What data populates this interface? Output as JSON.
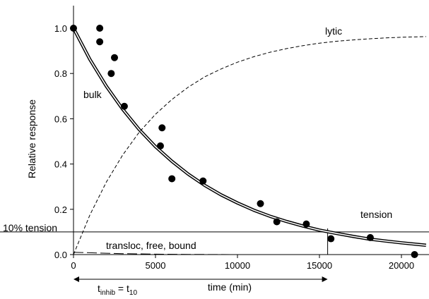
{
  "chart_data": {
    "type": "scatter",
    "title": "",
    "xlabel": "time (min)",
    "ylabel": "Relative response",
    "xlim": [
      0,
      21500
    ],
    "ylim": [
      0,
      1.0
    ],
    "x_ticks": [
      0,
      5000,
      10000,
      15000,
      20000
    ],
    "x_tick_labels": [
      "0",
      "5000",
      "10000",
      "15000",
      "20000"
    ],
    "y_ticks": [
      0.0,
      0.2,
      0.4,
      0.6,
      0.8,
      1.0
    ],
    "y_tick_labels": [
      "0.0",
      "0.2",
      "0.4",
      "0.6",
      "0.8",
      "1.0"
    ],
    "grid": false,
    "points": {
      "x": [
        0,
        1600,
        1600,
        2300,
        2500,
        3100,
        5300,
        5400,
        6000,
        7900,
        11400,
        12400,
        14200,
        15700,
        18100,
        20800
      ],
      "y": [
        1.0,
        1.0,
        0.94,
        0.8,
        0.87,
        0.655,
        0.48,
        0.56,
        0.335,
        0.325,
        0.225,
        0.145,
        0.135,
        0.07,
        0.075,
        0.0
      ]
    },
    "curves": [
      {
        "label": "bulk",
        "style": "double-solid",
        "x": [
          0,
          1000,
          2000,
          3000,
          4000,
          5000,
          6000,
          7000,
          8000,
          9000,
          10000,
          11000,
          12000,
          13000,
          14000,
          15000,
          16000,
          17000,
          18000,
          19000,
          20000,
          21500
        ],
        "y": [
          1.0,
          0.862,
          0.744,
          0.642,
          0.553,
          0.477,
          0.412,
          0.355,
          0.306,
          0.264,
          0.228,
          0.196,
          0.169,
          0.146,
          0.126,
          0.108,
          0.094,
          0.081,
          0.069,
          0.06,
          0.052,
          0.041
        ]
      },
      {
        "label": "lytic",
        "style": "dashed",
        "x": [
          0,
          1000,
          2000,
          3000,
          4000,
          5000,
          6000,
          7000,
          8000,
          9000,
          10000,
          11000,
          12000,
          13000,
          14000,
          15000,
          16000,
          17000,
          18000,
          19000,
          20000,
          21500
        ],
        "y": [
          0.0,
          0.175,
          0.32,
          0.44,
          0.54,
          0.62,
          0.685,
          0.74,
          0.785,
          0.82,
          0.85,
          0.874,
          0.894,
          0.91,
          0.923,
          0.934,
          0.942,
          0.948,
          0.953,
          0.957,
          0.96,
          0.963
        ]
      },
      {
        "label": "transloc, free, bound",
        "style": "long-dash",
        "x": [
          0,
          500,
          1000,
          2000,
          3000,
          4000,
          5000,
          7000,
          10000,
          15000,
          21500
        ],
        "y": [
          0.01,
          0.009,
          0.008,
          0.006,
          0.004,
          0.003,
          0.002,
          0.001,
          0.0,
          0.0,
          0.0
        ]
      }
    ],
    "reference_line": {
      "label": "10% tension",
      "y": 0.1
    },
    "crossing_x": 15500,
    "annotations": {
      "bulk": "bulk",
      "lytic": "lytic",
      "tension": "tension",
      "transloc": "transloc, free, bound",
      "t_base": "t",
      "t_sub1": "inhib",
      "t_eq": " = t",
      "t_sub2": "10"
    }
  }
}
